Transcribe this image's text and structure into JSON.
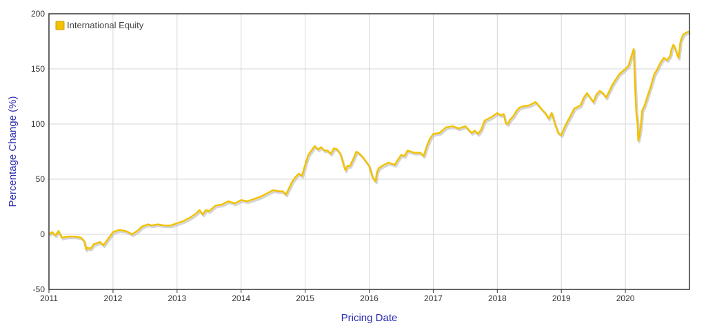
{
  "chart_data": {
    "type": "line",
    "title": "",
    "xlabel": "Pricing Date",
    "ylabel": "Percentage Change (%)",
    "xlim": [
      2011.0,
      2021.0
    ],
    "ylim": [
      -50,
      200
    ],
    "x_ticks": [
      "2011",
      "2012",
      "2013",
      "2014",
      "2015",
      "2016",
      "2017",
      "2018",
      "2019",
      "2020"
    ],
    "y_ticks": [
      -50,
      0,
      50,
      100,
      150,
      200
    ],
    "grid": true,
    "legend_position": "top-left",
    "colors": {
      "series": "#f2c200",
      "shadow": "#b8b8b8",
      "frame": "#333333",
      "grid": "#d6d6d6",
      "axis_title": "#2b2bb0"
    },
    "series": [
      {
        "name": "International Equity",
        "x": [
          2011.0,
          2011.05,
          2011.1,
          2011.15,
          2011.2,
          2011.3,
          2011.4,
          2011.5,
          2011.55,
          2011.58,
          2011.6,
          2011.65,
          2011.7,
          2011.75,
          2011.8,
          2011.85,
          2011.9,
          2011.95,
          2012.0,
          2012.05,
          2012.1,
          2012.2,
          2012.3,
          2012.4,
          2012.45,
          2012.5,
          2012.55,
          2012.6,
          2012.7,
          2012.8,
          2012.9,
          2013.0,
          2013.1,
          2013.2,
          2013.3,
          2013.35,
          2013.4,
          2013.45,
          2013.5,
          2013.6,
          2013.7,
          2013.8,
          2013.9,
          2014.0,
          2014.1,
          2014.2,
          2014.3,
          2014.4,
          2014.5,
          2014.6,
          2014.65,
          2014.7,
          2014.75,
          2014.8,
          2014.85,
          2014.9,
          2014.95,
          2015.0,
          2015.05,
          2015.1,
          2015.15,
          2015.2,
          2015.25,
          2015.3,
          2015.35,
          2015.4,
          2015.45,
          2015.5,
          2015.55,
          2015.6,
          2015.63,
          2015.66,
          2015.7,
          2015.75,
          2015.8,
          2015.85,
          2015.9,
          2015.95,
          2016.0,
          2016.05,
          2016.1,
          2016.12,
          2016.15,
          2016.2,
          2016.3,
          2016.4,
          2016.45,
          2016.5,
          2016.55,
          2016.6,
          2016.7,
          2016.8,
          2016.85,
          2016.9,
          2016.95,
          2017.0,
          2017.1,
          2017.2,
          2017.3,
          2017.4,
          2017.5,
          2017.6,
          2017.65,
          2017.7,
          2017.75,
          2017.8,
          2017.9,
          2018.0,
          2018.05,
          2018.1,
          2018.13,
          2018.16,
          2018.2,
          2018.25,
          2018.3,
          2018.35,
          2018.4,
          2018.5,
          2018.6,
          2018.7,
          2018.75,
          2018.8,
          2018.85,
          2018.9,
          2018.95,
          2019.0,
          2019.02,
          2019.05,
          2019.1,
          2019.15,
          2019.2,
          2019.3,
          2019.35,
          2019.4,
          2019.45,
          2019.5,
          2019.55,
          2019.6,
          2019.65,
          2019.7,
          2019.8,
          2019.9,
          2020.0,
          2020.05,
          2020.1,
          2020.13,
          2020.15,
          2020.17,
          2020.19,
          2020.2,
          2020.22,
          2020.24,
          2020.26,
          2020.3,
          2020.35,
          2020.4,
          2020.45,
          2020.5,
          2020.55,
          2020.6,
          2020.65,
          2020.7,
          2020.72,
          2020.75,
          2020.78,
          2020.8,
          2020.83,
          2020.86,
          2020.9,
          2020.95,
          2021.0
        ],
        "values": [
          0,
          2,
          -1,
          3,
          -3,
          -2,
          -2,
          -3,
          -6,
          -14,
          -12,
          -13,
          -9,
          -8,
          -7,
          -10,
          -6,
          -2,
          2,
          3,
          4,
          3,
          0,
          4,
          7,
          8,
          9,
          8,
          9,
          8,
          8,
          10,
          12,
          15,
          19,
          22,
          18,
          22,
          21,
          26,
          27,
          30,
          28,
          31,
          30,
          32,
          34,
          37,
          40,
          39,
          39,
          36,
          42,
          48,
          52,
          55,
          53,
          63,
          72,
          76,
          80,
          77,
          79,
          76,
          76,
          73,
          78,
          77,
          73,
          63,
          58,
          62,
          62,
          68,
          75,
          73,
          70,
          66,
          62,
          52,
          48,
          56,
          60,
          62,
          65,
          63,
          68,
          72,
          71,
          76,
          74,
          74,
          71,
          80,
          87,
          91,
          92,
          97,
          98,
          96,
          98,
          92,
          94,
          91,
          95,
          103,
          106,
          110,
          108,
          109,
          101,
          100,
          104,
          107,
          112,
          115,
          116,
          117,
          120,
          113,
          110,
          105,
          110,
          100,
          92,
          90,
          93,
          97,
          103,
          108,
          114,
          117,
          124,
          128,
          124,
          120,
          127,
          130,
          128,
          124,
          136,
          145,
          150,
          153,
          163,
          168,
          135,
          110,
          100,
          85,
          90,
          98,
          112,
          117,
          126,
          135,
          145,
          150,
          156,
          160,
          158,
          162,
          168,
          172,
          168,
          164,
          160,
          175,
          181,
          183,
          184
        ]
      }
    ]
  }
}
